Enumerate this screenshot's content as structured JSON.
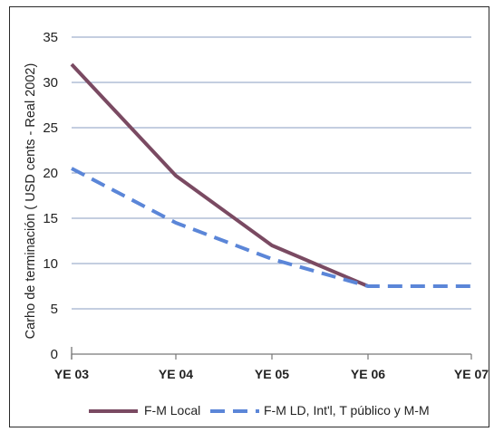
{
  "chart_data": {
    "type": "line",
    "title": "",
    "xlabel": "",
    "ylabel": "Carho de terminación ( USD cents - Real 2002)",
    "categories": [
      "YE 03",
      "YE 04",
      "YE 05",
      "YE 06",
      "YE 07"
    ],
    "ylim": [
      0,
      35
    ],
    "yticks": [
      0,
      5,
      10,
      15,
      20,
      25,
      30,
      35
    ],
    "grid": true,
    "legend_position": "bottom",
    "series": [
      {
        "name": "F-M Local",
        "values": [
          32,
          19.7,
          12,
          7.5,
          null
        ],
        "color": "#7a4a62",
        "style": "solid"
      },
      {
        "name": "F-M LD, Int'l, T público y M-M",
        "values": [
          20.5,
          14.5,
          10.5,
          7.5,
          7.5
        ],
        "color": "#5b86d8",
        "style": "dashed"
      }
    ]
  }
}
